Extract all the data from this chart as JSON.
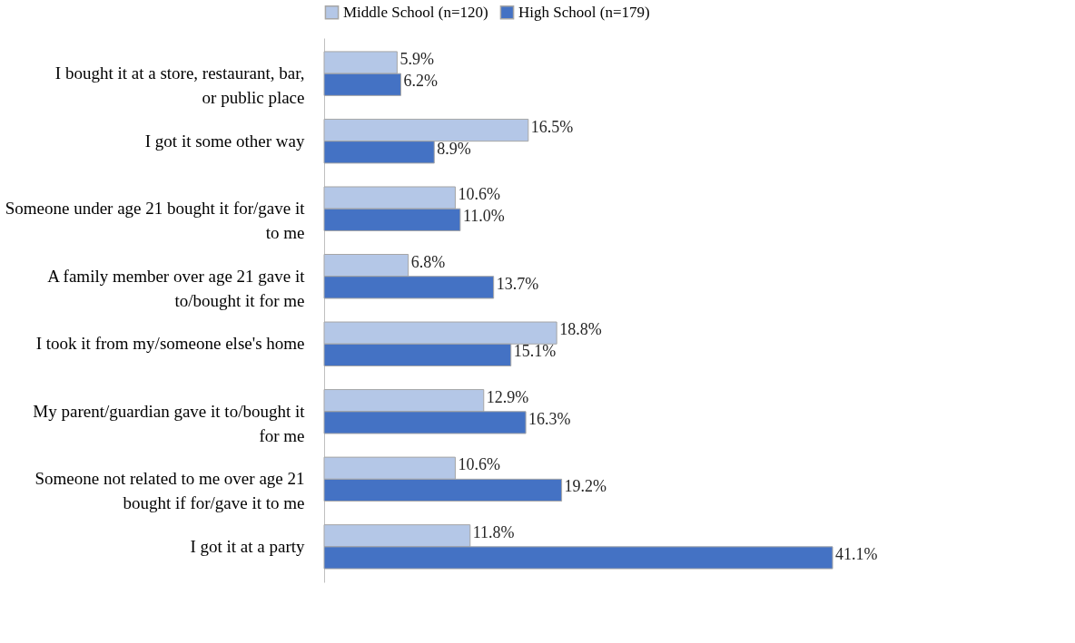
{
  "chart_data": {
    "type": "bar",
    "orientation": "horizontal",
    "data_labels": true,
    "legend": "top",
    "grid": false,
    "categories": [
      "I bought it at a store, restaurant, bar, or public place",
      "I got it some other way",
      "Someone under age 21 bought it for/gave it to me",
      "A family member over age 21 gave it to/bought it for me",
      "I took it from my/someone else's home",
      "My parent/guardian gave it to/bought it for me",
      "Someone not related to me over age 21 bought if for/gave it to me",
      "I got it at a party"
    ],
    "series": [
      {
        "name": "Middle School (n=120)",
        "color": "#b4c7e7",
        "values": [
          5.9,
          16.5,
          10.6,
          6.8,
          18.8,
          12.9,
          10.6,
          11.8
        ],
        "value_labels": [
          "5.9%",
          "16.5%",
          "10.6%",
          "6.8%",
          "18.8%",
          "12.9%",
          "10.6%",
          "11.8%"
        ]
      },
      {
        "name": "High School (n=179)",
        "color": "#4472c4",
        "values": [
          6.2,
          8.9,
          11.0,
          13.7,
          15.1,
          16.3,
          19.2,
          41.1
        ],
        "value_labels": [
          "6.2%",
          "8.9%",
          "11.0%",
          "13.7%",
          "15.1%",
          "16.3%",
          "19.2%",
          "41.1%"
        ]
      }
    ]
  }
}
